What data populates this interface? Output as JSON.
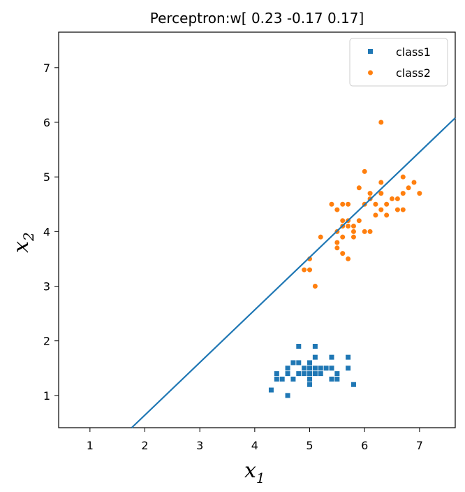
{
  "chart_data": {
    "type": "scatter",
    "title": "Perceptron:w[ 0.23 -0.17  0.17]",
    "xlabel_main": "x",
    "xlabel_sub": "1",
    "ylabel_main": "x",
    "ylabel_sub": "2",
    "xlim": [
      0.43,
      7.65
    ],
    "ylim": [
      0.41,
      7.65
    ],
    "xticks": [
      "1",
      "2",
      "3",
      "4",
      "5",
      "6",
      "7"
    ],
    "yticks": [
      "1",
      "2",
      "3",
      "4",
      "5",
      "6",
      "7"
    ],
    "grid": false,
    "legend_position": "top-right",
    "series": [
      {
        "name": "class1",
        "marker": "square",
        "color": "#1f77b4",
        "points": [
          [
            4.3,
            1.1
          ],
          [
            4.4,
            1.3
          ],
          [
            4.4,
            1.4
          ],
          [
            4.5,
            1.3
          ],
          [
            4.6,
            1.0
          ],
          [
            4.6,
            1.4
          ],
          [
            4.6,
            1.5
          ],
          [
            4.7,
            1.3
          ],
          [
            4.7,
            1.6
          ],
          [
            4.8,
            1.4
          ],
          [
            4.8,
            1.6
          ],
          [
            4.8,
            1.9
          ],
          [
            4.9,
            1.4
          ],
          [
            4.9,
            1.5
          ],
          [
            5.0,
            1.2
          ],
          [
            5.0,
            1.3
          ],
          [
            5.0,
            1.4
          ],
          [
            5.0,
            1.5
          ],
          [
            5.0,
            1.6
          ],
          [
            5.1,
            1.4
          ],
          [
            5.1,
            1.5
          ],
          [
            5.1,
            1.7
          ],
          [
            5.1,
            1.9
          ],
          [
            5.2,
            1.4
          ],
          [
            5.2,
            1.5
          ],
          [
            5.3,
            1.5
          ],
          [
            5.4,
            1.3
          ],
          [
            5.4,
            1.5
          ],
          [
            5.4,
            1.7
          ],
          [
            5.5,
            1.3
          ],
          [
            5.5,
            1.4
          ],
          [
            5.7,
            1.5
          ],
          [
            5.7,
            1.7
          ],
          [
            5.8,
            1.2
          ]
        ]
      },
      {
        "name": "class2",
        "marker": "circle",
        "color": "#ff7f0e",
        "points": [
          [
            4.9,
            3.3
          ],
          [
            5.0,
            3.3
          ],
          [
            5.0,
            3.5
          ],
          [
            5.1,
            3.0
          ],
          [
            5.2,
            3.9
          ],
          [
            5.4,
            4.5
          ],
          [
            5.5,
            3.7
          ],
          [
            5.5,
            3.8
          ],
          [
            5.5,
            4.0
          ],
          [
            5.5,
            4.4
          ],
          [
            5.6,
            3.6
          ],
          [
            5.6,
            3.9
          ],
          [
            5.6,
            4.1
          ],
          [
            5.6,
            4.2
          ],
          [
            5.6,
            4.5
          ],
          [
            5.7,
            3.5
          ],
          [
            5.7,
            4.1
          ],
          [
            5.7,
            4.2
          ],
          [
            5.7,
            4.5
          ],
          [
            5.8,
            3.9
          ],
          [
            5.8,
            4.0
          ],
          [
            5.8,
            4.1
          ],
          [
            5.9,
            4.2
          ],
          [
            5.9,
            4.8
          ],
          [
            6.0,
            4.0
          ],
          [
            6.0,
            4.5
          ],
          [
            6.0,
            5.1
          ],
          [
            6.1,
            4.0
          ],
          [
            6.1,
            4.6
          ],
          [
            6.1,
            4.7
          ],
          [
            6.2,
            4.3
          ],
          [
            6.2,
            4.5
          ],
          [
            6.3,
            4.4
          ],
          [
            6.3,
            4.7
          ],
          [
            6.3,
            4.9
          ],
          [
            6.3,
            6.0
          ],
          [
            6.4,
            4.3
          ],
          [
            6.4,
            4.5
          ],
          [
            6.5,
            4.6
          ],
          [
            6.6,
            4.4
          ],
          [
            6.6,
            4.6
          ],
          [
            6.7,
            4.4
          ],
          [
            6.7,
            4.7
          ],
          [
            6.7,
            5.0
          ],
          [
            6.8,
            4.8
          ],
          [
            6.9,
            4.9
          ],
          [
            7.0,
            4.7
          ]
        ]
      }
    ],
    "decision_boundary": {
      "color": "#1f77b4",
      "x": [
        1.76,
        7.65
      ],
      "y": [
        0.41,
        6.08
      ]
    }
  }
}
